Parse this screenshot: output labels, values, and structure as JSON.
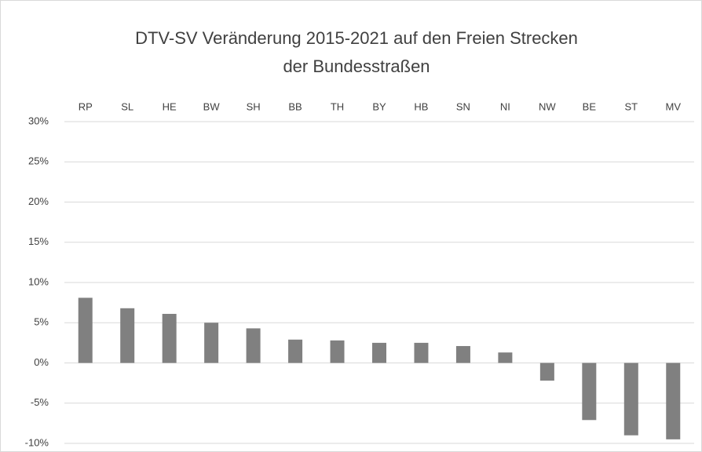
{
  "chart_data": {
    "type": "bar",
    "title": [
      "DTV-SV Veränderung 2015-2021 auf den Freien Strecken",
      "der Bundesstraßen"
    ],
    "categories": [
      "RP",
      "SL",
      "HE",
      "BW",
      "SH",
      "BB",
      "TH",
      "BY",
      "HB",
      "SN",
      "NI",
      "NW",
      "BE",
      "ST",
      "MV"
    ],
    "values": [
      8.1,
      6.8,
      6.1,
      5.0,
      4.3,
      2.9,
      2.8,
      2.5,
      2.5,
      2.1,
      1.3,
      -2.2,
      -7.1,
      -9.0,
      -9.5
    ],
    "color": "#808080",
    "ylim": [
      -10,
      30
    ],
    "yticks": [
      {
        "value": -10,
        "label": "-10%"
      },
      {
        "value": -5,
        "label": "-5%"
      },
      {
        "value": 0,
        "label": "0%"
      },
      {
        "value": 5,
        "label": "5%"
      },
      {
        "value": 10,
        "label": "10%"
      },
      {
        "value": 15,
        "label": "15%"
      },
      {
        "value": 20,
        "label": "20%"
      },
      {
        "value": 25,
        "label": "25%"
      },
      {
        "value": 30,
        "label": "30%"
      }
    ],
    "grid": true
  }
}
